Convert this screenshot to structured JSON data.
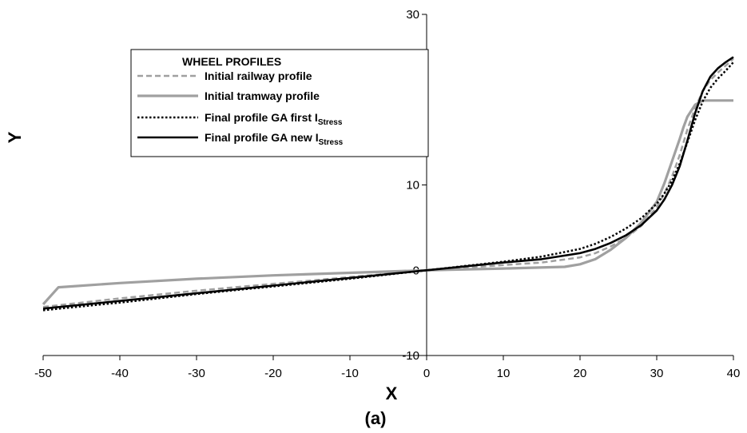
{
  "chart_data": {
    "type": "line",
    "title": "",
    "caption": "(a)",
    "xlabel": "X",
    "ylabel": "Y",
    "xlim": [
      -50,
      40
    ],
    "ylim": [
      -10,
      30
    ],
    "xticks": [
      -50,
      -40,
      -30,
      -20,
      -10,
      0,
      10,
      20,
      30,
      40
    ],
    "yticks": [
      -10,
      0,
      10,
      20,
      30
    ],
    "xtick_labels": [
      "-50",
      "-40",
      "-30",
      "-20",
      "-10",
      "0",
      "10",
      "20",
      "30",
      "40"
    ],
    "ytick_labels": [
      "-10",
      "0",
      "10",
      "20",
      "30"
    ],
    "grid": false,
    "legend": {
      "title": "WHEEL PROFILES",
      "placement": "top-left",
      "entries": [
        {
          "main": "Initial railway profile",
          "sub": ""
        },
        {
          "main": "Initial tramway profile",
          "sub": ""
        },
        {
          "main": "Final profile GA first I",
          "sub": "Stress"
        },
        {
          "main": "Final profile GA new I",
          "sub": "Stress"
        }
      ]
    },
    "series": [
      {
        "name": "Initial railway profile",
        "color": "#a0a0a0",
        "style": "dashed",
        "x": [
          -50,
          -40,
          -30,
          -20,
          -10,
          0,
          10,
          15,
          20,
          22,
          24,
          26,
          28,
          30,
          31,
          32,
          33,
          34,
          35,
          36,
          37,
          38,
          39,
          40
        ],
        "y": [
          -4.3,
          -3.3,
          -2.4,
          -1.6,
          -0.8,
          0,
          0.6,
          0.9,
          1.5,
          2.0,
          2.8,
          3.8,
          5.2,
          7.4,
          9.0,
          11.0,
          13.5,
          16.5,
          19.0,
          21.0,
          22.3,
          23.2,
          24.0,
          24.8
        ]
      },
      {
        "name": "Initial tramway profile",
        "color": "#a0a0a0",
        "style": "solid",
        "x": [
          -50,
          -48,
          -40,
          -30,
          -20,
          -10,
          0,
          10,
          18,
          20,
          22,
          24,
          26,
          28,
          30,
          31,
          32,
          33,
          33.5,
          34,
          35,
          36,
          40
        ],
        "y": [
          -4.0,
          -2.0,
          -1.5,
          -1.0,
          -0.6,
          -0.3,
          0,
          0.2,
          0.4,
          0.7,
          1.3,
          2.4,
          3.8,
          5.6,
          8.0,
          10.2,
          12.8,
          15.4,
          16.8,
          18.0,
          19.4,
          19.9,
          19.9
        ]
      },
      {
        "name": "Final profile GA first I_Stress",
        "color": "#000000",
        "style": "dotted",
        "x": [
          -50,
          -40,
          -30,
          -20,
          -10,
          0,
          10,
          15,
          20,
          22,
          24,
          26,
          28,
          30,
          31,
          32,
          33,
          34,
          35,
          36,
          37,
          38,
          39,
          40
        ],
        "y": [
          -4.7,
          -3.8,
          -2.8,
          -1.9,
          -1.0,
          0,
          1.0,
          1.6,
          2.5,
          3.1,
          3.9,
          4.9,
          6.1,
          7.8,
          9.0,
          10.5,
          12.5,
          15.0,
          17.6,
          19.8,
          21.4,
          22.5,
          23.4,
          24.4
        ]
      },
      {
        "name": "Final profile GA new I_Stress",
        "color": "#000000",
        "style": "solid",
        "x": [
          -50,
          -40,
          -30,
          -20,
          -10,
          0,
          10,
          15,
          20,
          22,
          24,
          26,
          28,
          30,
          31,
          32,
          33,
          34,
          35,
          36,
          37,
          38,
          39,
          40
        ],
        "y": [
          -4.5,
          -3.6,
          -2.7,
          -1.8,
          -0.9,
          0,
          0.9,
          1.3,
          2.0,
          2.5,
          3.2,
          4.1,
          5.3,
          7.0,
          8.3,
          10.0,
          12.2,
          15.2,
          18.4,
          21.0,
          22.7,
          23.7,
          24.4,
          25.0
        ]
      }
    ]
  }
}
